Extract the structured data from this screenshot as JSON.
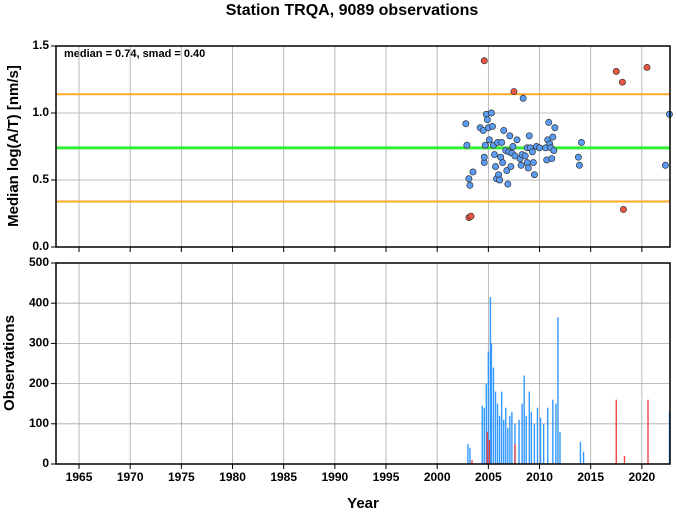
{
  "chart_data": [
    {
      "type": "scatter",
      "title": "Station TRQA, 9089 observations",
      "annotation": "median = 0.74, smad = 0.40",
      "y_label": "Median log(A/T) [nm/s]",
      "xlim": [
        1962.75,
        2022.75
      ],
      "ylim": [
        0,
        1.5
      ],
      "yticks": [
        {
          "value": 0,
          "label": "0.0"
        },
        0.5,
        {
          "value": 1,
          "label": "1.0"
        },
        1.5
      ],
      "grid": true,
      "reference_lines": [
        {
          "value": 0.74,
          "color": "#33ee33"
        },
        {
          "value": 1.14,
          "color": "#ffaa22"
        },
        {
          "value": 0.34,
          "color": "#ffaa22"
        }
      ],
      "series": [
        {
          "color": "#5b9cf5",
          "x": [
            2002.8,
            2002.9,
            2003.1,
            2003.2,
            2003.5,
            2004.2,
            2004.5,
            2004.6,
            2004.6,
            2004.7,
            2004.8,
            2004.9,
            2005.0,
            2005.1,
            2005.3,
            2005.4,
            2005.5,
            2005.6,
            2005.7,
            2005.8,
            2005.9,
            2006.0,
            2006.1,
            2006.2,
            2006.3,
            2006.4,
            2006.5,
            2006.7,
            2006.8,
            2006.9,
            2007.0,
            2007.1,
            2007.2,
            2007.3,
            2007.4,
            2007.6,
            2007.8,
            2008.1,
            2008.2,
            2008.3,
            2008.4,
            2008.6,
            2008.8,
            2008.8,
            2008.9,
            2009.0,
            2009.1,
            2009.3,
            2009.4,
            2009.5,
            2009.7,
            2010.0,
            2010.6,
            2010.7,
            2010.8,
            2010.9,
            2011.0,
            2011.1,
            2011.2,
            2011.3,
            2011.4,
            2011.5,
            2013.8,
            2013.9,
            2014.1,
            2022.3,
            2022.7
          ],
          "values": [
            0.92,
            0.76,
            0.51,
            0.46,
            0.56,
            0.89,
            0.87,
            0.63,
            0.67,
            0.76,
            0.99,
            0.95,
            0.89,
            0.8,
            1.0,
            0.9,
            0.76,
            0.69,
            0.6,
            0.51,
            0.78,
            0.54,
            0.5,
            0.67,
            0.78,
            0.63,
            0.87,
            0.72,
            0.57,
            0.47,
            0.71,
            0.83,
            0.6,
            0.7,
            0.75,
            0.68,
            0.8,
            0.66,
            0.61,
            0.69,
            1.11,
            0.68,
            0.74,
            0.63,
            0.59,
            0.83,
            0.74,
            0.71,
            0.63,
            0.54,
            0.75,
            0.74,
            0.74,
            0.65,
            0.8,
            0.93,
            0.77,
            0.74,
            0.66,
            0.82,
            0.72,
            0.89,
            0.67,
            0.61,
            0.78,
            0.61,
            0.99
          ]
        },
        {
          "color": "#ee5544",
          "x": [
            2004.6,
            2007.5,
            2017.5,
            2018.1,
            2020.5,
            2003.1,
            2003.3,
            2018.2
          ],
          "values": [
            1.39,
            1.16,
            1.31,
            1.23,
            1.34,
            0.22,
            0.23,
            0.28
          ]
        }
      ]
    },
    {
      "type": "bar",
      "x_label": "Year",
      "y_label": "Observations",
      "xlim": [
        1962.75,
        2022.75
      ],
      "ylim": [
        0,
        500
      ],
      "xticks": [
        1965,
        1970,
        1975,
        1980,
        1985,
        1990,
        1995,
        2000,
        2005,
        2010,
        2015,
        2020
      ],
      "yticks": [
        0,
        100,
        200,
        300,
        400,
        500
      ],
      "grid": true,
      "series": [
        {
          "color": "#3399ff",
          "x": [
            2003.0,
            2003.2,
            2004.4,
            2004.6,
            2004.8,
            2005.0,
            2005.2,
            2005.3,
            2005.5,
            2005.7,
            2005.9,
            2006.1,
            2006.3,
            2006.5,
            2006.7,
            2006.9,
            2007.1,
            2007.3,
            2007.6,
            2008.0,
            2008.3,
            2008.5,
            2008.7,
            2009.0,
            2009.2,
            2009.5,
            2009.8,
            2010.1,
            2010.4,
            2010.8,
            2011.3,
            2011.6,
            2011.8,
            2012.0,
            2014.0,
            2014.3,
            2022.7
          ],
          "values": [
            50,
            40,
            145,
            140,
            200,
            280,
            415,
            300,
            240,
            180,
            150,
            120,
            180,
            110,
            140,
            90,
            120,
            130,
            100,
            110,
            150,
            220,
            120,
            180,
            130,
            100,
            140,
            115,
            100,
            140,
            160,
            150,
            365,
            80,
            55,
            30,
            130
          ]
        },
        {
          "color": "#ee4444",
          "x": [
            2003.4,
            2004.9,
            2005.1,
            2007.6,
            2017.5,
            2018.3,
            2020.6
          ],
          "values": [
            10,
            80,
            60,
            50,
            160,
            20,
            160
          ]
        }
      ]
    }
  ]
}
